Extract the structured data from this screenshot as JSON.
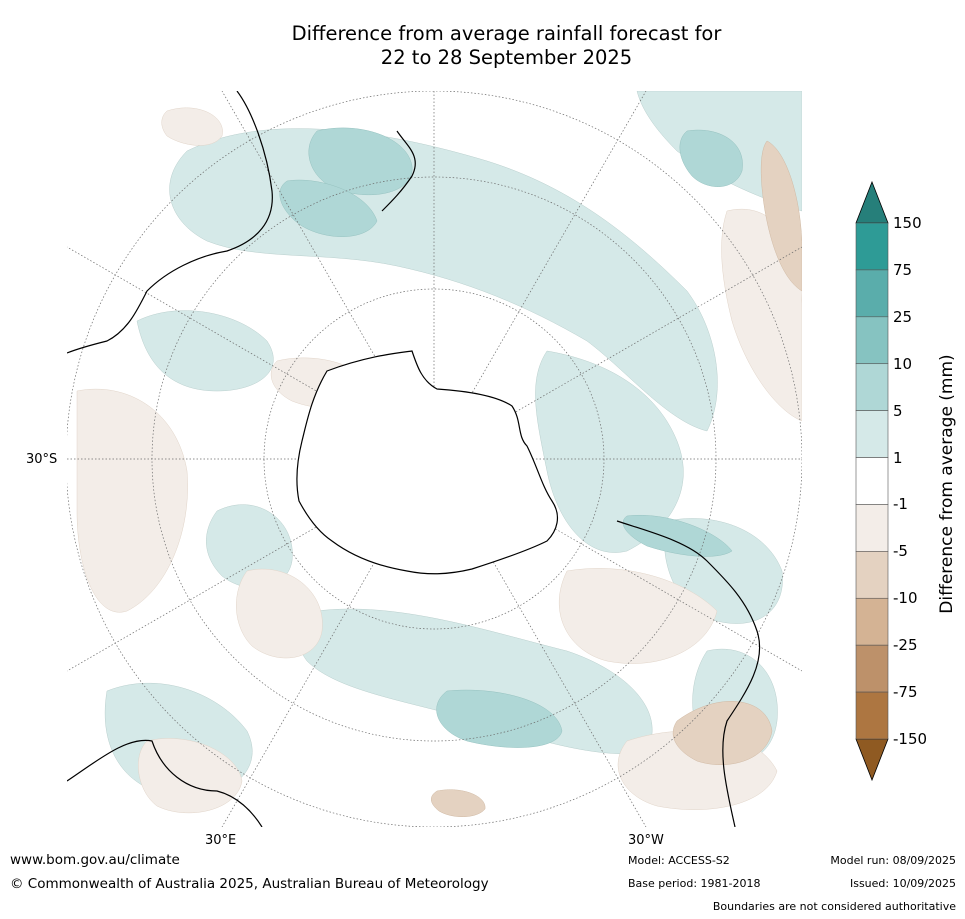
{
  "title_line1": "Difference from average rainfall forecast for",
  "title_line2": "22 to 28 September 2025",
  "map": {
    "lat_label": "30°S",
    "lon_label_left": "30°E",
    "lon_label_right": "30°W"
  },
  "colorbar": {
    "label": "Difference from average (mm)",
    "ticks": [
      "150",
      "75",
      "25",
      "10",
      "5",
      "1",
      "-1",
      "-5",
      "-10",
      "-25",
      "-75",
      "-150"
    ],
    "colors": {
      "over": "#267f7a",
      "bins": [
        "#2e9b96",
        "#5aadab",
        "#86c3c1",
        "#afd7d6",
        "#d5e9e8",
        "#ffffff",
        "#f3ede8",
        "#e4d2c1",
        "#d4b394",
        "#bd916a",
        "#ad7641"
      ],
      "under": "#8f5a22"
    }
  },
  "footer": {
    "website": "www.bom.gov.au/climate",
    "copyright": "© Commonwealth of Australia 2025, Australian Bureau of Meteorology",
    "model": "Model: ACCESS-S2",
    "base_period": "Base period: 1981-2018",
    "model_run": "Model run: 08/09/2025",
    "issued": "Issued: 10/09/2025",
    "disclaimer": "Boundaries are not considered authoritative"
  }
}
